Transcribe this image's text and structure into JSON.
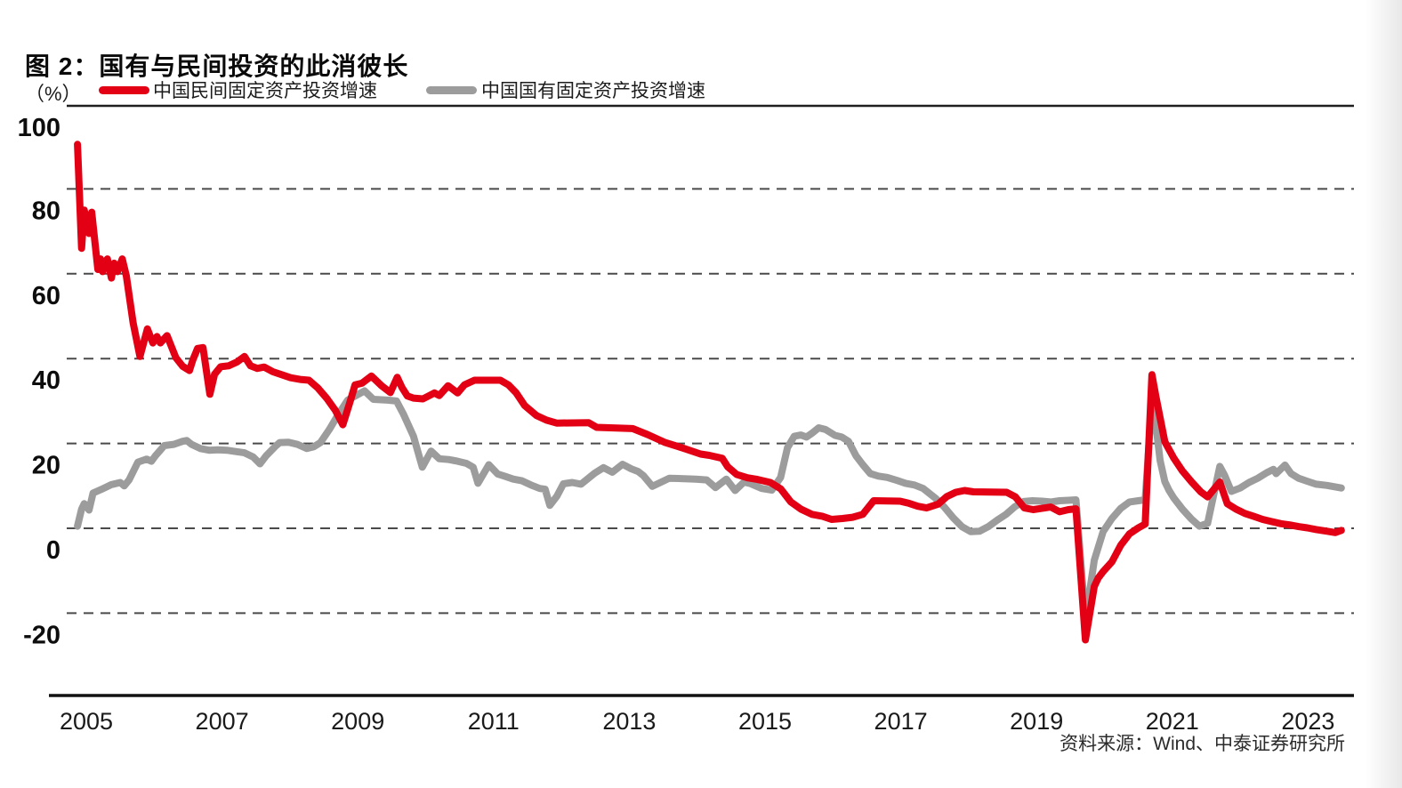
{
  "header": {
    "title": "图 2：国有与民间投资的此消彼长"
  },
  "legend": {
    "unit_label": "（%）",
    "items": [
      {
        "label": "中国民间固定资产投资增速",
        "color": "#e30014"
      },
      {
        "label": "中国国有固定资产投资增速",
        "color": "#9c9c9c"
      }
    ]
  },
  "footer": {
    "source": "资料来源：Wind、中泰证券研究所"
  },
  "chart_data": {
    "type": "line",
    "title": "图 2：国有与民间投资的此消彼长",
    "xlabel": "",
    "ylabel": "（%）",
    "ylim": [
      -40,
      100
    ],
    "xlim": [
      2005.0,
      2024.0
    ],
    "yticks": [
      100,
      80,
      60,
      40,
      20,
      0,
      -20
    ],
    "xticks": [
      2005,
      2007,
      2009,
      2011,
      2013,
      2015,
      2017,
      2019,
      2021,
      2023
    ],
    "grid": "horizontal-dashed",
    "legend_position": "top-left",
    "series": [
      {
        "name": "中国民间固定资产投资增速",
        "color": "#e30014",
        "points": [
          [
            2005.37,
            90.5
          ],
          [
            2005.43,
            66
          ],
          [
            2005.47,
            75
          ],
          [
            2005.54,
            69.5
          ],
          [
            2005.58,
            74.5
          ],
          [
            2005.67,
            61
          ],
          [
            2005.71,
            63.5
          ],
          [
            2005.74,
            60.5
          ],
          [
            2005.81,
            63.5
          ],
          [
            2005.87,
            59
          ],
          [
            2005.91,
            62.5
          ],
          [
            2005.96,
            60.5
          ],
          [
            2006.03,
            63.5
          ],
          [
            2006.09,
            59.5
          ],
          [
            2006.19,
            48.5
          ],
          [
            2006.29,
            40.5
          ],
          [
            2006.4,
            47
          ],
          [
            2006.48,
            43.7
          ],
          [
            2006.54,
            45.2
          ],
          [
            2006.59,
            43.7
          ],
          [
            2006.69,
            45.4
          ],
          [
            2006.82,
            40.2
          ],
          [
            2006.92,
            38.2
          ],
          [
            2007.02,
            37.2
          ],
          [
            2007.07,
            39.7
          ],
          [
            2007.14,
            42.4
          ],
          [
            2007.22,
            42.6
          ],
          [
            2007.32,
            31.6
          ],
          [
            2007.39,
            36.3
          ],
          [
            2007.48,
            38.1
          ],
          [
            2007.6,
            38.3
          ],
          [
            2007.72,
            39.2
          ],
          [
            2007.83,
            40.5
          ],
          [
            2007.92,
            38.3
          ],
          [
            2008.02,
            37.7
          ],
          [
            2008.12,
            38
          ],
          [
            2008.25,
            36.9
          ],
          [
            2008.38,
            36.2
          ],
          [
            2008.51,
            35.5
          ],
          [
            2008.65,
            35.1
          ],
          [
            2008.78,
            34.9
          ],
          [
            2008.91,
            33.1
          ],
          [
            2009.04,
            30.7
          ],
          [
            2009.17,
            27.8
          ],
          [
            2009.28,
            24.4
          ],
          [
            2009.38,
            29.5
          ],
          [
            2009.46,
            33.8
          ],
          [
            2009.56,
            34.2
          ],
          [
            2009.7,
            35.9
          ],
          [
            2009.85,
            33.6
          ],
          [
            2009.98,
            32
          ],
          [
            2010.08,
            35.6
          ],
          [
            2010.15,
            33.2
          ],
          [
            2010.23,
            31.2
          ],
          [
            2010.32,
            30.7
          ],
          [
            2010.46,
            30.5
          ],
          [
            2010.63,
            31.9
          ],
          [
            2010.7,
            31.3
          ],
          [
            2010.83,
            33.6
          ],
          [
            2010.97,
            31.9
          ],
          [
            2011.07,
            33.8
          ],
          [
            2011.22,
            34.9
          ],
          [
            2011.6,
            34.9
          ],
          [
            2011.72,
            33.8
          ],
          [
            2011.83,
            32
          ],
          [
            2011.96,
            28.9
          ],
          [
            2012.13,
            26.6
          ],
          [
            2012.28,
            25.5
          ],
          [
            2012.43,
            24.8
          ],
          [
            2012.9,
            24.9
          ],
          [
            2013.02,
            23.8
          ],
          [
            2013.55,
            23.5
          ],
          [
            2013.77,
            22.1
          ],
          [
            2014.03,
            20.2
          ],
          [
            2014.29,
            18.9
          ],
          [
            2014.55,
            17.5
          ],
          [
            2014.68,
            17.2
          ],
          [
            2014.87,
            16.5
          ],
          [
            2014.95,
            14.5
          ],
          [
            2015.08,
            12.7
          ],
          [
            2015.24,
            11.9
          ],
          [
            2015.39,
            11.5
          ],
          [
            2015.58,
            10.8
          ],
          [
            2015.73,
            9.3
          ],
          [
            2015.88,
            6.2
          ],
          [
            2016.03,
            4.5
          ],
          [
            2016.19,
            3.3
          ],
          [
            2016.35,
            2.8
          ],
          [
            2016.48,
            2.1
          ],
          [
            2016.64,
            2.3
          ],
          [
            2016.79,
            2.6
          ],
          [
            2016.94,
            3.3
          ],
          [
            2017.1,
            6.5
          ],
          [
            2017.49,
            6.4
          ],
          [
            2017.62,
            5.9
          ],
          [
            2017.75,
            5.2
          ],
          [
            2017.88,
            4.8
          ],
          [
            2018.05,
            5.7
          ],
          [
            2018.18,
            7.5
          ],
          [
            2018.31,
            8.5
          ],
          [
            2018.44,
            8.9
          ],
          [
            2018.57,
            8.6
          ],
          [
            2019.06,
            8.5
          ],
          [
            2019.19,
            7.4
          ],
          [
            2019.32,
            4.8
          ],
          [
            2019.45,
            4.4
          ],
          [
            2019.58,
            4.7
          ],
          [
            2019.71,
            5
          ],
          [
            2019.84,
            3.9
          ],
          [
            2019.97,
            4.4
          ],
          [
            2020.08,
            4.6
          ],
          [
            2020.22,
            -26.3
          ],
          [
            2020.35,
            -13.7
          ],
          [
            2020.41,
            -11.7
          ],
          [
            2020.48,
            -10.2
          ],
          [
            2020.61,
            -7.9
          ],
          [
            2020.74,
            -4
          ],
          [
            2020.87,
            -1.3
          ],
          [
            2021,
            0.1
          ],
          [
            2021.1,
            1
          ],
          [
            2021.2,
            36.2
          ],
          [
            2021.26,
            30.9
          ],
          [
            2021.39,
            20.4
          ],
          [
            2021.52,
            16.6
          ],
          [
            2021.65,
            13.5
          ],
          [
            2021.78,
            11
          ],
          [
            2021.92,
            8.6
          ],
          [
            2022.02,
            7.4
          ],
          [
            2022.2,
            10.9
          ],
          [
            2022.31,
            5.8
          ],
          [
            2022.44,
            4.5
          ],
          [
            2022.57,
            3.5
          ],
          [
            2022.7,
            2.8
          ],
          [
            2022.83,
            2.1
          ],
          [
            2022.96,
            1.6
          ],
          [
            2023.1,
            1.1
          ],
          [
            2023.23,
            0.8
          ],
          [
            2023.36,
            0.4
          ],
          [
            2023.49,
            0.1
          ],
          [
            2023.62,
            -0.3
          ],
          [
            2023.78,
            -0.7
          ],
          [
            2023.9,
            -1
          ],
          [
            2023.99,
            -0.5
          ]
        ]
      },
      {
        "name": "中国国有固定资产投资增速",
        "color": "#9c9c9c",
        "points": [
          [
            2005.37,
            0.5
          ],
          [
            2005.43,
            4.5
          ],
          [
            2005.47,
            5.8
          ],
          [
            2005.54,
            4.3
          ],
          [
            2005.6,
            8.3
          ],
          [
            2005.74,
            9.3
          ],
          [
            2005.87,
            10.3
          ],
          [
            2006,
            10.8
          ],
          [
            2006.06,
            10
          ],
          [
            2006.13,
            11.4
          ],
          [
            2006.26,
            15.6
          ],
          [
            2006.39,
            16.3
          ],
          [
            2006.46,
            15.8
          ],
          [
            2006.52,
            17.1
          ],
          [
            2006.65,
            19.5
          ],
          [
            2006.79,
            19.8
          ],
          [
            2006.92,
            20.5
          ],
          [
            2006.98,
            20.7
          ],
          [
            2007.05,
            19.8
          ],
          [
            2007.18,
            18.8
          ],
          [
            2007.31,
            18.4
          ],
          [
            2007.44,
            18.5
          ],
          [
            2007.57,
            18.4
          ],
          [
            2007.7,
            18.1
          ],
          [
            2007.83,
            17.8
          ],
          [
            2007.96,
            16.8
          ],
          [
            2008.06,
            15.2
          ],
          [
            2008.15,
            17.1
          ],
          [
            2008.29,
            19.4
          ],
          [
            2008.35,
            20.2
          ],
          [
            2008.48,
            20.3
          ],
          [
            2008.61,
            19.8
          ],
          [
            2008.75,
            18.8
          ],
          [
            2008.85,
            19.2
          ],
          [
            2008.95,
            20.2
          ],
          [
            2009.08,
            23.3
          ],
          [
            2009.2,
            26.5
          ],
          [
            2009.35,
            30.2
          ],
          [
            2009.6,
            32.4
          ],
          [
            2009.73,
            30.4
          ],
          [
            2009.94,
            30.2
          ],
          [
            2010.07,
            30
          ],
          [
            2010.17,
            27
          ],
          [
            2010.32,
            21.7
          ],
          [
            2010.45,
            14.4
          ],
          [
            2010.58,
            18.2
          ],
          [
            2010.7,
            16.4
          ],
          [
            2010.84,
            16.2
          ],
          [
            2010.97,
            15.8
          ],
          [
            2011.1,
            15.3
          ],
          [
            2011.2,
            14.4
          ],
          [
            2011.27,
            10.6
          ],
          [
            2011.43,
            15
          ],
          [
            2011.56,
            12.8
          ],
          [
            2011.66,
            12.3
          ],
          [
            2011.79,
            11.6
          ],
          [
            2011.92,
            11.2
          ],
          [
            2012.05,
            10.2
          ],
          [
            2012.18,
            9.4
          ],
          [
            2012.26,
            9.2
          ],
          [
            2012.33,
            5.4
          ],
          [
            2012.43,
            7.5
          ],
          [
            2012.53,
            10.5
          ],
          [
            2012.66,
            10.8
          ],
          [
            2012.79,
            10.4
          ],
          [
            2012.99,
            13
          ],
          [
            2013.12,
            14.3
          ],
          [
            2013.25,
            13.2
          ],
          [
            2013.4,
            15.1
          ],
          [
            2013.53,
            14
          ],
          [
            2013.63,
            13.4
          ],
          [
            2013.71,
            12.4
          ],
          [
            2013.84,
            9.9
          ],
          [
            2014.09,
            11.8
          ],
          [
            2014.48,
            11.6
          ],
          [
            2014.64,
            11.4
          ],
          [
            2014.77,
            9.6
          ],
          [
            2014.93,
            11.6
          ],
          [
            2015.06,
            8.9
          ],
          [
            2015.19,
            10.9
          ],
          [
            2015.29,
            10.5
          ],
          [
            2015.45,
            9.4
          ],
          [
            2015.6,
            9
          ],
          [
            2015.73,
            12
          ],
          [
            2015.83,
            19
          ],
          [
            2015.93,
            21.7
          ],
          [
            2016.03,
            22
          ],
          [
            2016.11,
            21.5
          ],
          [
            2016.19,
            22.4
          ],
          [
            2016.29,
            23.7
          ],
          [
            2016.39,
            23.3
          ],
          [
            2016.53,
            21.9
          ],
          [
            2016.63,
            21.5
          ],
          [
            2016.73,
            20.5
          ],
          [
            2016.84,
            17.1
          ],
          [
            2016.94,
            15
          ],
          [
            2017.05,
            12.9
          ],
          [
            2017.17,
            12.3
          ],
          [
            2017.3,
            12
          ],
          [
            2017.44,
            11.3
          ],
          [
            2017.57,
            10.6
          ],
          [
            2017.7,
            10.2
          ],
          [
            2017.83,
            9.4
          ],
          [
            2018.01,
            7.1
          ],
          [
            2018.14,
            5
          ],
          [
            2018.27,
            2.5
          ],
          [
            2018.4,
            0.4
          ],
          [
            2018.53,
            -0.8
          ],
          [
            2018.66,
            -0.7
          ],
          [
            2018.79,
            0.4
          ],
          [
            2018.92,
            1.9
          ],
          [
            2019.05,
            3.3
          ],
          [
            2019.18,
            5.1
          ],
          [
            2019.31,
            6.3
          ],
          [
            2019.44,
            6.5
          ],
          [
            2019.58,
            6.4
          ],
          [
            2019.71,
            6.2
          ],
          [
            2019.84,
            6.5
          ],
          [
            2019.97,
            6.6
          ],
          [
            2020.08,
            6.7
          ],
          [
            2020.22,
            -21.7
          ],
          [
            2020.35,
            -7.5
          ],
          [
            2020.48,
            -0.8
          ],
          [
            2020.61,
            2.3
          ],
          [
            2020.74,
            4.7
          ],
          [
            2020.87,
            6.2
          ],
          [
            2021,
            6.5
          ],
          [
            2021.1,
            6.7
          ],
          [
            2021.2,
            30.3
          ],
          [
            2021.26,
            24
          ],
          [
            2021.32,
            16
          ],
          [
            2021.39,
            11
          ],
          [
            2021.45,
            9
          ],
          [
            2021.52,
            7.2
          ],
          [
            2021.65,
            4.5
          ],
          [
            2021.78,
            2.2
          ],
          [
            2021.9,
            0.5
          ],
          [
            2022.02,
            1.2
          ],
          [
            2022.2,
            14.6
          ],
          [
            2022.27,
            12.5
          ],
          [
            2022.37,
            8.7
          ],
          [
            2022.5,
            9.5
          ],
          [
            2022.63,
            10.8
          ],
          [
            2022.76,
            11.8
          ],
          [
            2022.89,
            13.1
          ],
          [
            2022.99,
            13.9
          ],
          [
            2023.03,
            12.9
          ],
          [
            2023.16,
            14.9
          ],
          [
            2023.25,
            12.9
          ],
          [
            2023.36,
            11.8
          ],
          [
            2023.49,
            11.1
          ],
          [
            2023.62,
            10.4
          ],
          [
            2023.78,
            10.1
          ],
          [
            2023.99,
            9.5
          ]
        ]
      }
    ]
  }
}
